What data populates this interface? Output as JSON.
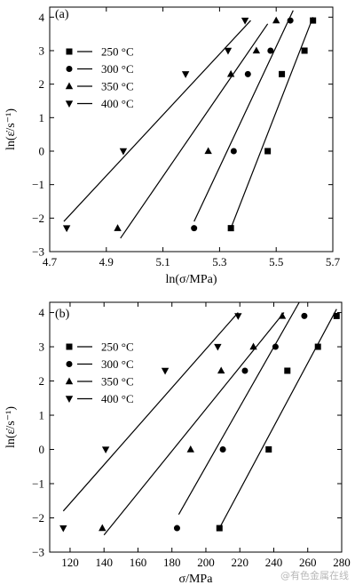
{
  "watermark": "@有色金属在线",
  "chart_data": [
    {
      "type": "scatter",
      "panel": "(a)",
      "xlabel": "ln(σ/MPa)",
      "ylabel": "ln(ε̇/s⁻¹)",
      "xlim": [
        4.7,
        5.7
      ],
      "ylim": [
        -3,
        4.3
      ],
      "xticks": [
        4.7,
        4.9,
        5.1,
        5.3,
        5.5,
        5.7
      ],
      "yticks": [
        -3,
        -2,
        -1,
        0,
        1,
        2,
        3,
        4
      ],
      "xticklabels": [
        "4.7",
        "4.9",
        "5.1",
        "5.3",
        "5.5",
        "5.7"
      ],
      "yticklabels": [
        "−3",
        "−2",
        "−1",
        "0",
        "1",
        "2",
        "3",
        "4"
      ],
      "legend_position": "upper-left",
      "series": [
        {
          "name": "250 °C",
          "marker": "square",
          "points": [
            [
              5.34,
              -2.3
            ],
            [
              5.47,
              0.0
            ],
            [
              5.52,
              2.3
            ],
            [
              5.6,
              3.0
            ],
            [
              5.63,
              3.9
            ]
          ],
          "fit": [
            [
              5.34,
              -2.3
            ],
            [
              5.63,
              4.0
            ]
          ]
        },
        {
          "name": "300 °C",
          "marker": "circle",
          "points": [
            [
              5.21,
              -2.3
            ],
            [
              5.35,
              0.0
            ],
            [
              5.4,
              2.3
            ],
            [
              5.48,
              3.0
            ],
            [
              5.55,
              3.9
            ]
          ],
          "fit": [
            [
              5.21,
              -2.1
            ],
            [
              5.56,
              4.2
            ]
          ]
        },
        {
          "name": "350 °C",
          "marker": "triangle-up",
          "points": [
            [
              4.94,
              -2.3
            ],
            [
              5.26,
              0.0
            ],
            [
              5.34,
              2.3
            ],
            [
              5.43,
              3.0
            ],
            [
              5.5,
              3.9
            ]
          ],
          "fit": [
            [
              4.95,
              -2.6
            ],
            [
              5.47,
              3.8
            ]
          ]
        },
        {
          "name": "400 °C",
          "marker": "triangle-down",
          "points": [
            [
              4.76,
              -2.3
            ],
            [
              4.96,
              0.0
            ],
            [
              5.18,
              2.3
            ],
            [
              5.33,
              3.0
            ],
            [
              5.39,
              3.9
            ]
          ],
          "fit": [
            [
              4.75,
              -2.1
            ],
            [
              5.41,
              3.9
            ]
          ]
        }
      ]
    },
    {
      "type": "scatter",
      "panel": "(b)",
      "xlabel": "σ/MPa",
      "ylabel": "ln(ε̇/s⁻¹)",
      "xlim": [
        108,
        280
      ],
      "ylim": [
        -3,
        4.3
      ],
      "xticks": [
        120,
        140,
        160,
        180,
        200,
        220,
        240,
        260,
        280
      ],
      "yticks": [
        -3,
        -2,
        -1,
        0,
        1,
        2,
        3,
        4
      ],
      "xticklabels": [
        "120",
        "140",
        "160",
        "180",
        "200",
        "220",
        "240",
        "260",
        "280"
      ],
      "yticklabels": [
        "−3",
        "−2",
        "−1",
        "0",
        "1",
        "2",
        "3",
        "4"
      ],
      "legend_position": "upper-left",
      "series": [
        {
          "name": "250 °C",
          "marker": "square",
          "points": [
            [
              208,
              -2.3
            ],
            [
              237,
              0.0
            ],
            [
              248,
              2.3
            ],
            [
              266,
              3.0
            ],
            [
              277,
              3.9
            ]
          ],
          "fit": [
            [
              208,
              -2.3
            ],
            [
              277,
              4.1
            ]
          ]
        },
        {
          "name": "300 °C",
          "marker": "circle",
          "points": [
            [
              183,
              -2.3
            ],
            [
              210,
              0.0
            ],
            [
              223,
              2.3
            ],
            [
              241,
              3.0
            ],
            [
              258,
              3.9
            ]
          ],
          "fit": [
            [
              184,
              -1.9
            ],
            [
              255,
              4.3
            ]
          ]
        },
        {
          "name": "350 °C",
          "marker": "triangle-up",
          "points": [
            [
              139,
              -2.3
            ],
            [
              191,
              0.0
            ],
            [
              209,
              2.3
            ],
            [
              228,
              3.0
            ],
            [
              245,
              3.9
            ]
          ],
          "fit": [
            [
              140,
              -2.5
            ],
            [
              246,
              4.0
            ]
          ]
        },
        {
          "name": "400 °C",
          "marker": "triangle-down",
          "points": [
            [
              116,
              -2.3
            ],
            [
              141,
              0.0
            ],
            [
              176,
              2.3
            ],
            [
              207,
              3.0
            ],
            [
              219,
              3.9
            ]
          ],
          "fit": [
            [
              116,
              -1.8
            ],
            [
              219,
              4.0
            ]
          ]
        }
      ]
    }
  ]
}
